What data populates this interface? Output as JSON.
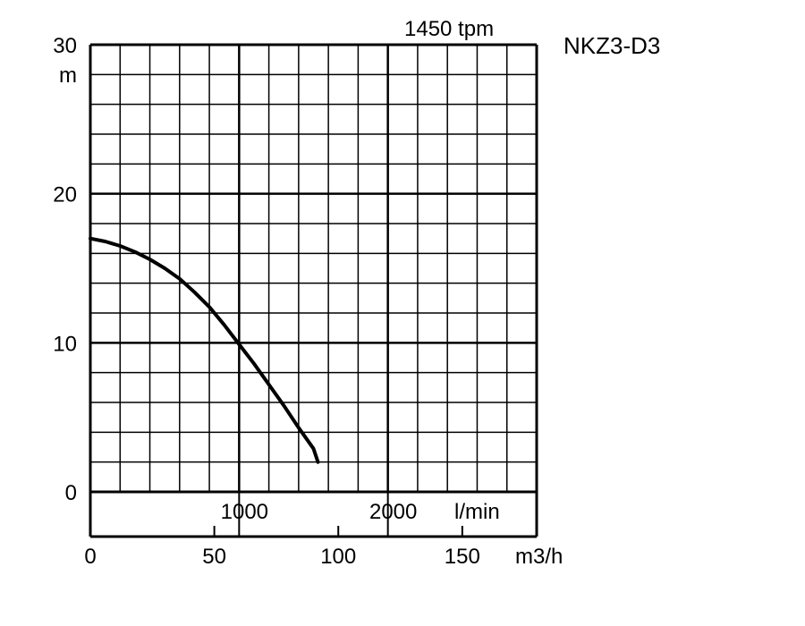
{
  "chart_data": {
    "type": "line",
    "model": "NKZ3-D3",
    "speed_label": "1450 tpm",
    "y_unit": "m",
    "y_ticks": [
      {
        "value": 0,
        "label": "0"
      },
      {
        "value": 10,
        "label": "10"
      },
      {
        "value": 20,
        "label": "20"
      },
      {
        "value": 30,
        "label": "30"
      }
    ],
    "x_unit_lmin": "l/min",
    "x_ticks_lmin": [
      {
        "value": 1000,
        "label": "1000"
      },
      {
        "value": 2000,
        "label": "2000"
      }
    ],
    "x_unit_m3h": "m3/h",
    "x_ticks_m3h": [
      {
        "value": 0,
        "label": "0"
      },
      {
        "value": 50,
        "label": "50"
      },
      {
        "value": 100,
        "label": "100"
      },
      {
        "value": 150,
        "label": "150"
      }
    ],
    "xlim_lmin": [
      0,
      3000
    ],
    "ylim": [
      0,
      30
    ],
    "grid": true,
    "series": [
      {
        "x_lmin": [
          0,
          100,
          200,
          300,
          400,
          500,
          600,
          700,
          800,
          900,
          1000,
          1100,
          1200,
          1300,
          1400,
          1500,
          1530
        ],
        "y": [
          17.0,
          16.8,
          16.5,
          16.1,
          15.6,
          15.0,
          14.3,
          13.4,
          12.4,
          11.2,
          9.9,
          8.6,
          7.2,
          5.8,
          4.3,
          2.9,
          2.0
        ]
      }
    ]
  }
}
